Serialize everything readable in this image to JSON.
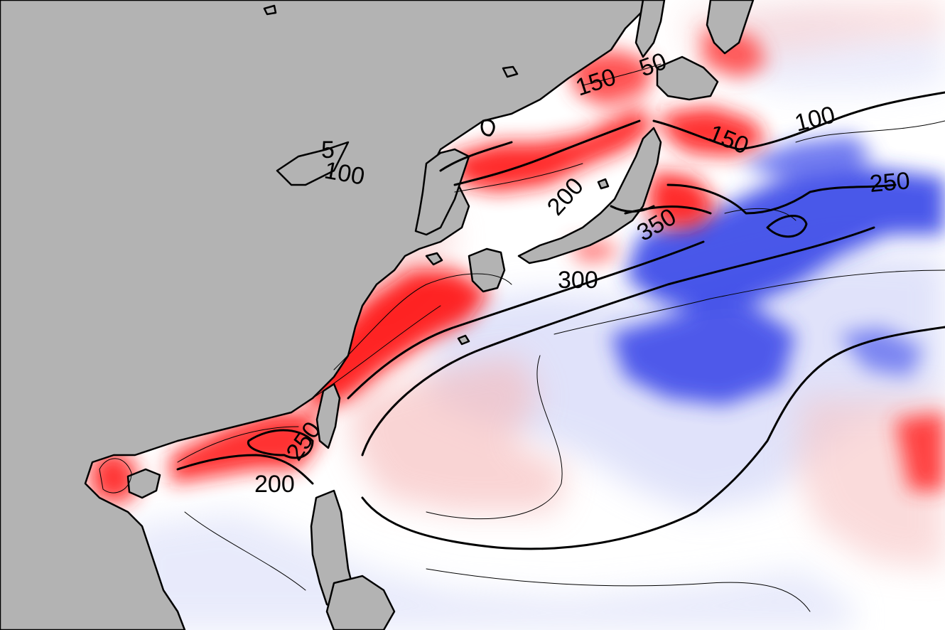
{
  "colors": {
    "land": "#b3b3b3",
    "ocean": "#ffffff",
    "positive_anomaly": "#ff0000",
    "negative_anomaly": "#1f2fe0",
    "contour": "#000000"
  },
  "contour_labels": [
    {
      "id": "label-150-north",
      "text": "150"
    },
    {
      "id": "label-50",
      "text": "50"
    },
    {
      "id": "label-100-west",
      "text": "100"
    },
    {
      "id": "label-100-east",
      "text": "100"
    },
    {
      "id": "label-150-east",
      "text": "150"
    },
    {
      "id": "label-200-north",
      "text": "200"
    },
    {
      "id": "label-250-east",
      "text": "250"
    },
    {
      "id": "label-350",
      "text": "350"
    },
    {
      "id": "label-300",
      "text": "300"
    },
    {
      "id": "label-250-south",
      "text": "250"
    },
    {
      "id": "label-200-south",
      "text": "200"
    },
    {
      "id": "label-5",
      "text": "5"
    }
  ]
}
